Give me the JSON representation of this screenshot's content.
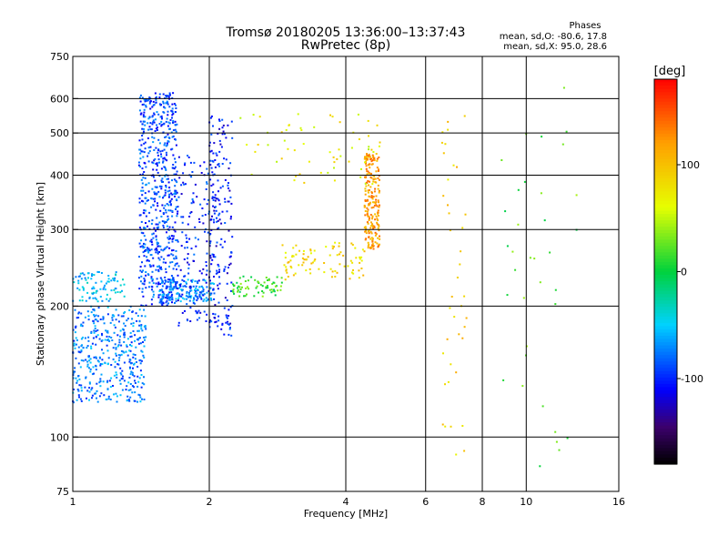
{
  "chart_data": {
    "type": "scatter",
    "title": "Tromsø 20180205 13:36:00–13:37:43",
    "subtitle": "RwPretec (8p)",
    "xlabel": "Frequency [MHz]",
    "ylabel": "Stationary phase Virtual Height [km]",
    "x_scale": "log",
    "y_scale": "log",
    "xlim": [
      1,
      16
    ],
    "ylim": [
      75,
      750
    ],
    "x_ticks": [
      1,
      2,
      4,
      6,
      8,
      10,
      16
    ],
    "y_ticks": [
      75,
      100,
      200,
      300,
      400,
      500,
      600,
      750
    ],
    "grid": true,
    "phases_info": {
      "heading": "Phases",
      "line_o": "mean, sd,O: -80.6, 17.8",
      "line_x": "mean, sd,X:  95.0, 28.6"
    },
    "colorbar": {
      "label": "[deg]",
      "range": [
        -180,
        180
      ],
      "ticks": [
        100,
        0,
        -100
      ]
    },
    "clusters": [
      {
        "x": [
          1.0,
          1.45
        ],
        "y": [
          120,
          200
        ],
        "phase": -75,
        "n": 420
      },
      {
        "x": [
          1.0,
          1.3
        ],
        "y": [
          205,
          240
        ],
        "phase": -55,
        "n": 90
      },
      {
        "x": [
          1.4,
          1.7
        ],
        "y": [
          200,
          620
        ],
        "phase": -90,
        "n": 650
      },
      {
        "x": [
          1.55,
          2.05
        ],
        "y": [
          205,
          230
        ],
        "phase": -70,
        "n": 150
      },
      {
        "x": [
          1.7,
          2.1
        ],
        "y": [
          180,
          450
        ],
        "phase": -100,
        "n": 180
      },
      {
        "x": [
          2.0,
          2.25
        ],
        "y": [
          170,
          560
        ],
        "phase": -105,
        "n": 160
      },
      {
        "x": [
          2.25,
          2.9
        ],
        "y": [
          210,
          235
        ],
        "phase": 15,
        "n": 70
      },
      {
        "x": [
          2.9,
          4.4
        ],
        "y": [
          230,
          280
        ],
        "phase": 85,
        "n": 90
      },
      {
        "x": [
          4.4,
          4.75
        ],
        "y": [
          270,
          450
        ],
        "phase": 120,
        "n": 220
      },
      {
        "x": [
          2.3,
          4.8
        ],
        "y": [
          380,
          560
        ],
        "phase": 70,
        "n": 60
      },
      {
        "x": [
          6.5,
          7.4
        ],
        "y": [
          90,
          580
        ],
        "phase": 90,
        "n": 40
      },
      {
        "x": [
          8.5,
          13.0
        ],
        "y": [
          80,
          650
        ],
        "phase": 20,
        "n": 35
      }
    ]
  }
}
